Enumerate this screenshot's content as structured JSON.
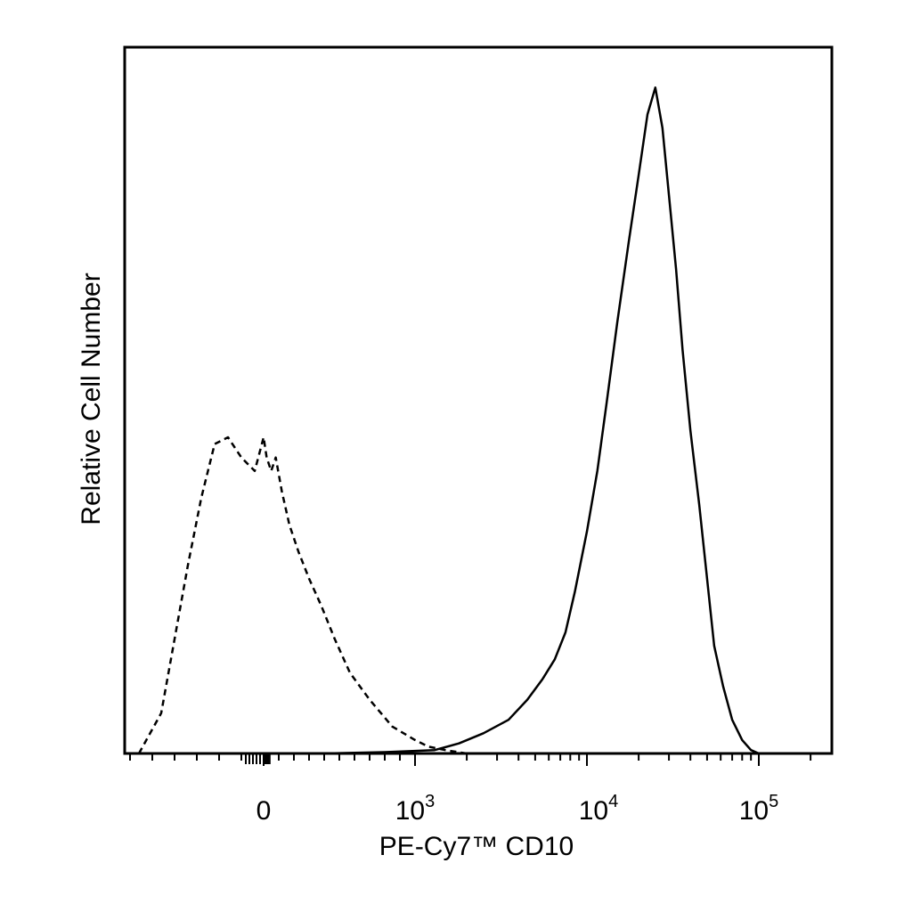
{
  "chart_data": {
    "type": "line",
    "title": "",
    "xlabel": "PE-Cy7™ CD10",
    "ylabel": "Relative Cell Number",
    "x_scale": "biexponential",
    "xlim": [
      -300,
      200000
    ],
    "ylim": [
      0,
      1.05
    ],
    "grid": false,
    "legend": "none",
    "x_tick_labels": [
      {
        "value": 0,
        "base": "0",
        "exp": ""
      },
      {
        "value": 1000,
        "base": "10",
        "exp": "3"
      },
      {
        "value": 10000,
        "base": "10",
        "exp": "4"
      },
      {
        "value": 100000,
        "base": "10",
        "exp": "5"
      }
    ],
    "series": [
      {
        "style": "dashed",
        "color": "#000000",
        "x": [
          -280,
          -230,
          -200,
          -170,
          -140,
          -110,
          -80,
          -50,
          -20,
          0,
          20,
          50,
          80,
          120,
          170,
          230,
          300,
          380,
          470,
          570,
          700,
          850,
          1000,
          1200,
          1500,
          2000,
          5000,
          20000,
          100000
        ],
        "y": [
          0.0,
          0.06,
          0.17,
          0.28,
          0.38,
          0.46,
          0.47,
          0.44,
          0.42,
          0.47,
          0.44,
          0.42,
          0.44,
          0.39,
          0.34,
          0.3,
          0.26,
          0.22,
          0.17,
          0.12,
          0.08,
          0.04,
          0.02,
          0.01,
          0.005,
          0.0,
          0.0,
          0.0,
          0.0
        ]
      },
      {
        "style": "solid",
        "color": "#000000",
        "x": [
          400,
          800,
          1300,
          1800,
          2500,
          3500,
          4500,
          5500,
          6500,
          7500,
          8500,
          10000,
          11500,
          13000,
          15000,
          17500,
          20000,
          22500,
          25000,
          27500,
          30000,
          33000,
          36000,
          40000,
          45000,
          50000,
          55000,
          62000,
          70000,
          80000,
          90000,
          100000
        ],
        "y": [
          0.0,
          0.002,
          0.005,
          0.015,
          0.03,
          0.05,
          0.08,
          0.11,
          0.14,
          0.18,
          0.24,
          0.33,
          0.42,
          0.52,
          0.64,
          0.76,
          0.86,
          0.95,
          0.99,
          0.93,
          0.83,
          0.72,
          0.6,
          0.48,
          0.37,
          0.26,
          0.16,
          0.1,
          0.05,
          0.02,
          0.005,
          0.0
        ]
      }
    ]
  }
}
